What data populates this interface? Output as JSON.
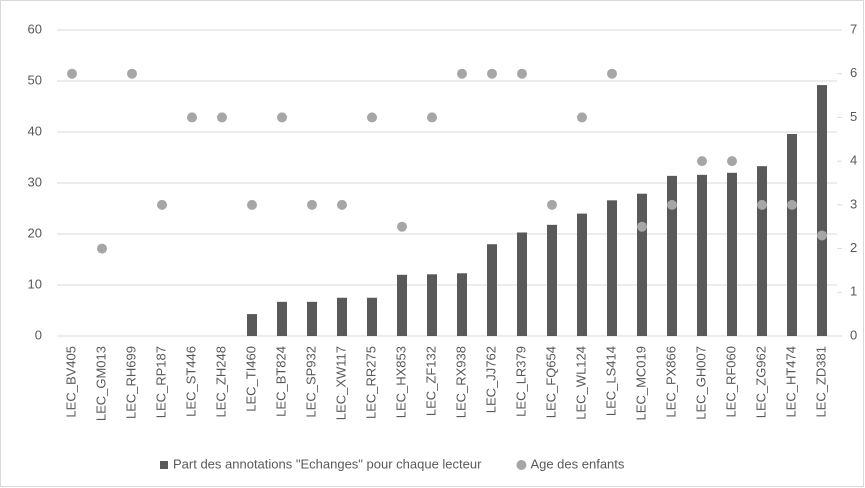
{
  "chart_data": {
    "type": "bar",
    "categories": [
      "LEC_BV405",
      "LEC_GM013",
      "LEC_RH699",
      "LEC_RP187",
      "LEC_ST446",
      "LEC_ZH248",
      "LEC_TI460",
      "LEC_BT824",
      "LEC_SP932",
      "LEC_XW117",
      "LEC_RR275",
      "LEC_HX853",
      "LEC_ZF132",
      "LEC_RX938",
      "LEC_JJ762",
      "LEC_LR379",
      "LEC_FQ654",
      "LEC_WL124",
      "LEC_LS414",
      "LEC_MC019",
      "LEC_PX866",
      "LEC_GH007",
      "LEC_RF060",
      "LEC_ZG962",
      "LEC_HT474",
      "LEC_ZD381"
    ],
    "series": [
      {
        "name": "Part des annotations \"Echanges\" pour chaque lecteur",
        "type": "bar",
        "color": "#595959",
        "values": [
          0,
          0,
          0,
          0,
          0,
          0,
          4.3,
          6.7,
          6.7,
          7.5,
          7.5,
          12,
          12.1,
          12.3,
          18,
          20.3,
          21.8,
          24,
          26.6,
          27.9,
          31.4,
          31.6,
          32,
          33.3,
          39.6,
          49.2
        ]
      },
      {
        "name": "Age des enfants",
        "type": "scatter",
        "axis": "y2",
        "color": "#a6a6a6",
        "values": [
          6,
          2,
          6,
          3,
          5,
          5,
          3,
          5,
          3,
          3,
          5,
          2.5,
          5,
          6,
          6,
          6,
          3,
          5,
          6,
          2.5,
          3,
          4,
          4,
          3,
          3,
          2.3
        ]
      }
    ],
    "ylim": [
      0,
      60
    ],
    "yticks": [
      0,
      10,
      20,
      30,
      40,
      50,
      60
    ],
    "y2lim": [
      0,
      7
    ],
    "y2ticks": [
      0,
      1,
      2,
      3,
      4,
      5,
      6,
      7
    ],
    "grid": true,
    "legend": "bottom"
  }
}
